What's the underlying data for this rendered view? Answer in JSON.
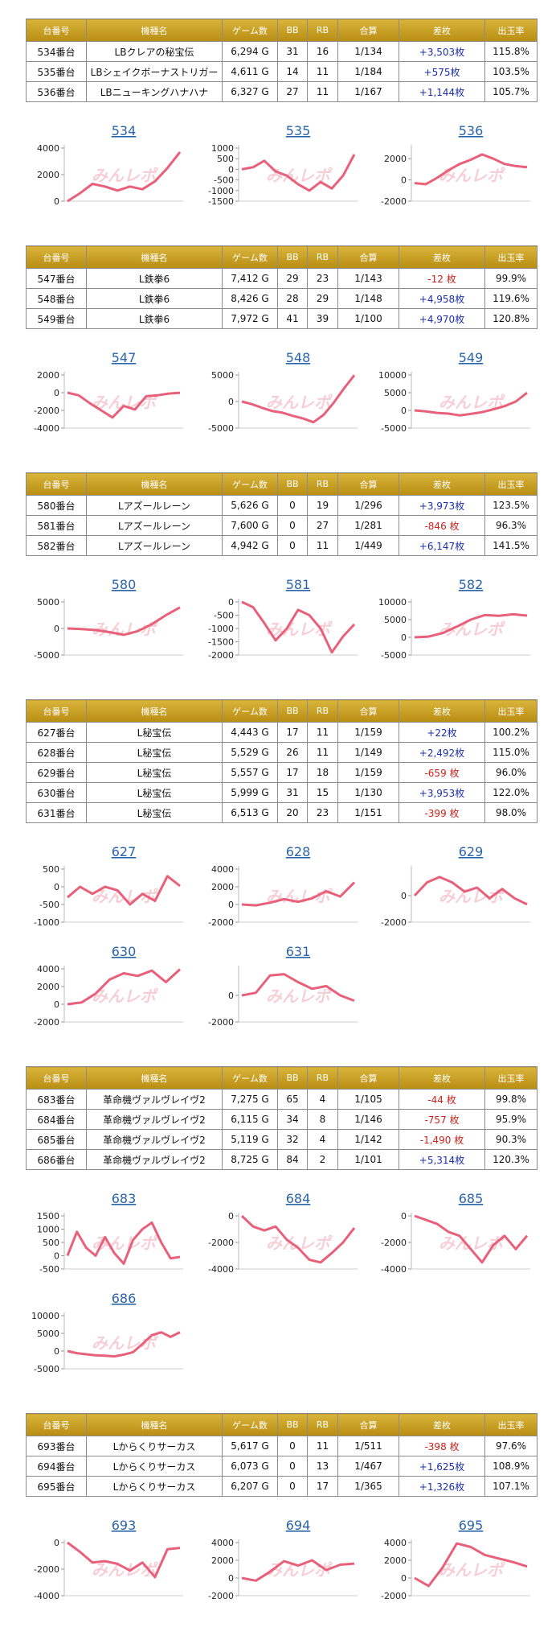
{
  "watermark": "みんレポ",
  "tables": [
    {
      "header": [
        "台番号",
        "機種名",
        "ゲーム数",
        "BB",
        "RB",
        "合算",
        "差枚",
        "出玉率"
      ],
      "rows": [
        [
          "534番台",
          "LBクレアの秘宝伝",
          "6,294 G",
          "31",
          "16",
          "1/134",
          "+3,503枚",
          "115.8%"
        ],
        [
          "535番台",
          "LBシェイクボーナストリガー",
          "4,611 G",
          "14",
          "11",
          "1/184",
          "+575枚",
          "103.5%"
        ],
        [
          "536番台",
          "LBニューキングハナハナ",
          "6,327 G",
          "27",
          "11",
          "1/167",
          "+1,144枚",
          "105.7%"
        ]
      ]
    },
    {
      "header": [
        "台番号",
        "機種名",
        "ゲーム数",
        "BB",
        "RB",
        "合算",
        "差枚",
        "出玉率"
      ],
      "rows": [
        [
          "547番台",
          "L鉄拳6",
          "7,412 G",
          "29",
          "23",
          "1/143",
          "-12 枚",
          "99.9%"
        ],
        [
          "548番台",
          "L鉄拳6",
          "8,426 G",
          "28",
          "29",
          "1/148",
          "+4,958枚",
          "119.6%"
        ],
        [
          "549番台",
          "L鉄拳6",
          "7,972 G",
          "41",
          "39",
          "1/100",
          "+4,970枚",
          "120.8%"
        ]
      ]
    },
    {
      "header": [
        "台番号",
        "機種名",
        "ゲーム数",
        "BB",
        "RB",
        "合算",
        "差枚",
        "出玉率"
      ],
      "rows": [
        [
          "580番台",
          "Lアズールレーン",
          "5,626 G",
          "0",
          "19",
          "1/296",
          "+3,973枚",
          "123.5%"
        ],
        [
          "581番台",
          "Lアズールレーン",
          "7,600 G",
          "0",
          "27",
          "1/281",
          "-846 枚",
          "96.3%"
        ],
        [
          "582番台",
          "Lアズールレーン",
          "4,942 G",
          "0",
          "11",
          "1/449",
          "+6,147枚",
          "141.5%"
        ]
      ]
    },
    {
      "header": [
        "台番号",
        "機種名",
        "ゲーム数",
        "BB",
        "RB",
        "合算",
        "差枚",
        "出玉率"
      ],
      "rows": [
        [
          "627番台",
          "L秘宝伝",
          "4,443 G",
          "17",
          "11",
          "1/159",
          "+22枚",
          "100.2%"
        ],
        [
          "628番台",
          "L秘宝伝",
          "5,529 G",
          "26",
          "11",
          "1/149",
          "+2,492枚",
          "115.0%"
        ],
        [
          "629番台",
          "L秘宝伝",
          "5,557 G",
          "17",
          "18",
          "1/159",
          "-659 枚",
          "96.0%"
        ],
        [
          "630番台",
          "L秘宝伝",
          "5,999 G",
          "31",
          "15",
          "1/130",
          "+3,953枚",
          "122.0%"
        ],
        [
          "631番台",
          "L秘宝伝",
          "6,513 G",
          "20",
          "23",
          "1/151",
          "-399 枚",
          "98.0%"
        ]
      ]
    },
    {
      "header": [
        "台番号",
        "機種名",
        "ゲーム数",
        "BB",
        "RB",
        "合算",
        "差枚",
        "出玉率"
      ],
      "rows": [
        [
          "683番台",
          "革命機ヴァルヴレイヴ2",
          "7,275 G",
          "65",
          "4",
          "1/105",
          "-44 枚",
          "99.8%"
        ],
        [
          "684番台",
          "革命機ヴァルヴレイヴ2",
          "6,115 G",
          "34",
          "8",
          "1/146",
          "-757 枚",
          "95.9%"
        ],
        [
          "685番台",
          "革命機ヴァルヴレイヴ2",
          "5,119 G",
          "32",
          "4",
          "1/142",
          "-1,490 枚",
          "90.3%"
        ],
        [
          "686番台",
          "革命機ヴァルヴレイヴ2",
          "8,725 G",
          "84",
          "2",
          "1/101",
          "+5,314枚",
          "120.3%"
        ]
      ]
    },
    {
      "header": [
        "台番号",
        "機種名",
        "ゲーム数",
        "BB",
        "RB",
        "合算",
        "差枚",
        "出玉率"
      ],
      "rows": [
        [
          "693番台",
          "Lからくりサーカス",
          "5,617 G",
          "0",
          "11",
          "1/511",
          "-398 枚",
          "97.6%"
        ],
        [
          "694番台",
          "Lからくりサーカス",
          "6,073 G",
          "0",
          "13",
          "1/467",
          "+1,625枚",
          "108.9%"
        ],
        [
          "695番台",
          "Lからくりサーカス",
          "6,207 G",
          "0",
          "17",
          "1/365",
          "+1,326枚",
          "107.1%"
        ]
      ]
    }
  ],
  "chart_data": [
    {
      "type": "line",
      "title": "534",
      "color": "#e8607a",
      "ylim": [
        0,
        4000
      ],
      "yticks": [
        0,
        2000,
        4000
      ],
      "values": [
        0,
        600,
        1300,
        1100,
        800,
        1100,
        900,
        1500,
        2500,
        3700
      ]
    },
    {
      "type": "line",
      "title": "535",
      "color": "#e8607a",
      "ylim": [
        -1500,
        1000
      ],
      "yticks": [
        -1500,
        -1000,
        -500,
        0,
        500,
        1000
      ],
      "values": [
        0,
        100,
        400,
        -100,
        -300,
        -700,
        -1000,
        -600,
        -900,
        -300,
        700
      ]
    },
    {
      "type": "line",
      "title": "536",
      "color": "#e8607a",
      "ylim": [
        -2000,
        3000
      ],
      "yticks": [
        -2000,
        0,
        2000
      ],
      "values": [
        -300,
        -400,
        200,
        900,
        1500,
        1900,
        2400,
        2000,
        1500,
        1300,
        1200
      ]
    },
    {
      "type": "line",
      "title": "547",
      "color": "#e8607a",
      "ylim": [
        -4000,
        2000
      ],
      "yticks": [
        -4000,
        -2000,
        0,
        2000
      ],
      "values": [
        0,
        -300,
        -1200,
        -2000,
        -2800,
        -1500,
        -1900,
        -400,
        -300,
        -100,
        -12
      ]
    },
    {
      "type": "line",
      "title": "548",
      "color": "#e8607a",
      "ylim": [
        -5000,
        5000
      ],
      "yticks": [
        -5000,
        0,
        5000
      ],
      "values": [
        0,
        -500,
        -1200,
        -1800,
        -2100,
        -2700,
        -3200,
        -3900,
        -2500,
        -200,
        2500,
        4958
      ]
    },
    {
      "type": "line",
      "title": "549",
      "color": "#e8607a",
      "ylim": [
        -5000,
        10000
      ],
      "yticks": [
        -5000,
        0,
        5000,
        10000
      ],
      "values": [
        0,
        -300,
        -700,
        -900,
        -1400,
        -1000,
        -500,
        300,
        1200,
        2500,
        4970
      ]
    },
    {
      "type": "line",
      "title": "580",
      "color": "#e8607a",
      "ylim": [
        -5000,
        5000
      ],
      "yticks": [
        -5000,
        0,
        5000
      ],
      "values": [
        0,
        -100,
        -300,
        -700,
        -1200,
        -500,
        800,
        2500,
        3973
      ]
    },
    {
      "type": "line",
      "title": "581",
      "color": "#e8607a",
      "ylim": [
        -2000,
        0
      ],
      "yticks": [
        -2000,
        -1500,
        -1000,
        -500,
        0
      ],
      "values": [
        0,
        -200,
        -800,
        -1450,
        -1000,
        -300,
        -500,
        -1000,
        -1900,
        -1300,
        -846
      ]
    },
    {
      "type": "line",
      "title": "582",
      "color": "#e8607a",
      "ylim": [
        -5000,
        10000
      ],
      "yticks": [
        -5000,
        0,
        5000,
        10000
      ],
      "values": [
        0,
        200,
        1200,
        3000,
        5000,
        6300,
        6100,
        6500,
        6147
      ]
    },
    {
      "type": "line",
      "title": "627",
      "color": "#e8607a",
      "ylim": [
        -1000,
        500
      ],
      "yticks": [
        -1000,
        -500,
        0,
        500
      ],
      "values": [
        -300,
        0,
        -200,
        0,
        -100,
        -500,
        -200,
        -400,
        300,
        22
      ]
    },
    {
      "type": "line",
      "title": "628",
      "color": "#e8607a",
      "ylim": [
        -2000,
        4000
      ],
      "yticks": [
        -2000,
        0,
        2000,
        4000
      ],
      "values": [
        0,
        -100,
        200,
        600,
        300,
        700,
        1500,
        900,
        2492
      ]
    },
    {
      "type": "line",
      "title": "629",
      "color": "#e8607a",
      "ylim": [
        -2000,
        2000
      ],
      "yticks": [
        -2000,
        0
      ],
      "values": [
        0,
        1000,
        1400,
        1000,
        300,
        600,
        -200,
        500,
        -200,
        -659
      ]
    },
    {
      "type": "line",
      "title": "630",
      "color": "#e8607a",
      "ylim": [
        -2000,
        4000
      ],
      "yticks": [
        -2000,
        0,
        2000,
        4000
      ],
      "values": [
        0,
        200,
        1200,
        2800,
        3500,
        3200,
        3800,
        2500,
        3953
      ]
    },
    {
      "type": "line",
      "title": "631",
      "color": "#e8607a",
      "ylim": [
        -2000,
        2000
      ],
      "yticks": [
        -2000,
        0
      ],
      "values": [
        0,
        200,
        1500,
        1600,
        1000,
        500,
        700,
        0,
        -399
      ]
    },
    {
      "type": "line",
      "title": "683",
      "color": "#e8607a",
      "ylim": [
        -500,
        1500
      ],
      "yticks": [
        -500,
        0,
        500,
        1000,
        1500
      ],
      "values": [
        0,
        900,
        300,
        0,
        700,
        100,
        -300,
        600,
        1000,
        1250,
        500,
        -100,
        -44
      ]
    },
    {
      "type": "line",
      "title": "684",
      "color": "#e8607a",
      "ylim": [
        -4000,
        0
      ],
      "yticks": [
        -4000,
        -2000,
        0
      ],
      "values": [
        0,
        -800,
        -1100,
        -800,
        -1800,
        -2400,
        -3300,
        -3500,
        -2800,
        -2000,
        -900
      ]
    },
    {
      "type": "line",
      "title": "685",
      "color": "#e8607a",
      "ylim": [
        -4000,
        0
      ],
      "yticks": [
        -4000,
        -2000,
        0
      ],
      "values": [
        0,
        -300,
        -600,
        -1200,
        -1500,
        -2500,
        -3500,
        -2200,
        -1500,
        -2500,
        -1490
      ]
    },
    {
      "type": "line",
      "title": "686",
      "color": "#e8607a",
      "ylim": [
        -5000,
        10000
      ],
      "yticks": [
        -5000,
        0,
        5000,
        10000
      ],
      "values": [
        0,
        -600,
        -900,
        -1200,
        -1300,
        -1500,
        -1000,
        -300,
        2000,
        4500,
        5300,
        4000,
        5314
      ]
    },
    {
      "type": "line",
      "title": "693",
      "color": "#e8607a",
      "ylim": [
        -4000,
        0
      ],
      "yticks": [
        -4000,
        -2000,
        0
      ],
      "values": [
        0,
        -700,
        -1500,
        -1400,
        -1600,
        -2100,
        -1500,
        -2600,
        -500,
        -398
      ]
    },
    {
      "type": "line",
      "title": "694",
      "color": "#e8607a",
      "ylim": [
        -2000,
        4000
      ],
      "yticks": [
        -2000,
        0,
        2000,
        4000
      ],
      "values": [
        0,
        -300,
        700,
        1900,
        1400,
        2000,
        900,
        1500,
        1625
      ]
    },
    {
      "type": "line",
      "title": "695",
      "color": "#e8607a",
      "ylim": [
        -2000,
        4000
      ],
      "yticks": [
        -2000,
        0,
        2000,
        4000
      ],
      "values": [
        0,
        -900,
        1200,
        3900,
        3500,
        2600,
        2200,
        1800,
        1300
      ]
    }
  ]
}
